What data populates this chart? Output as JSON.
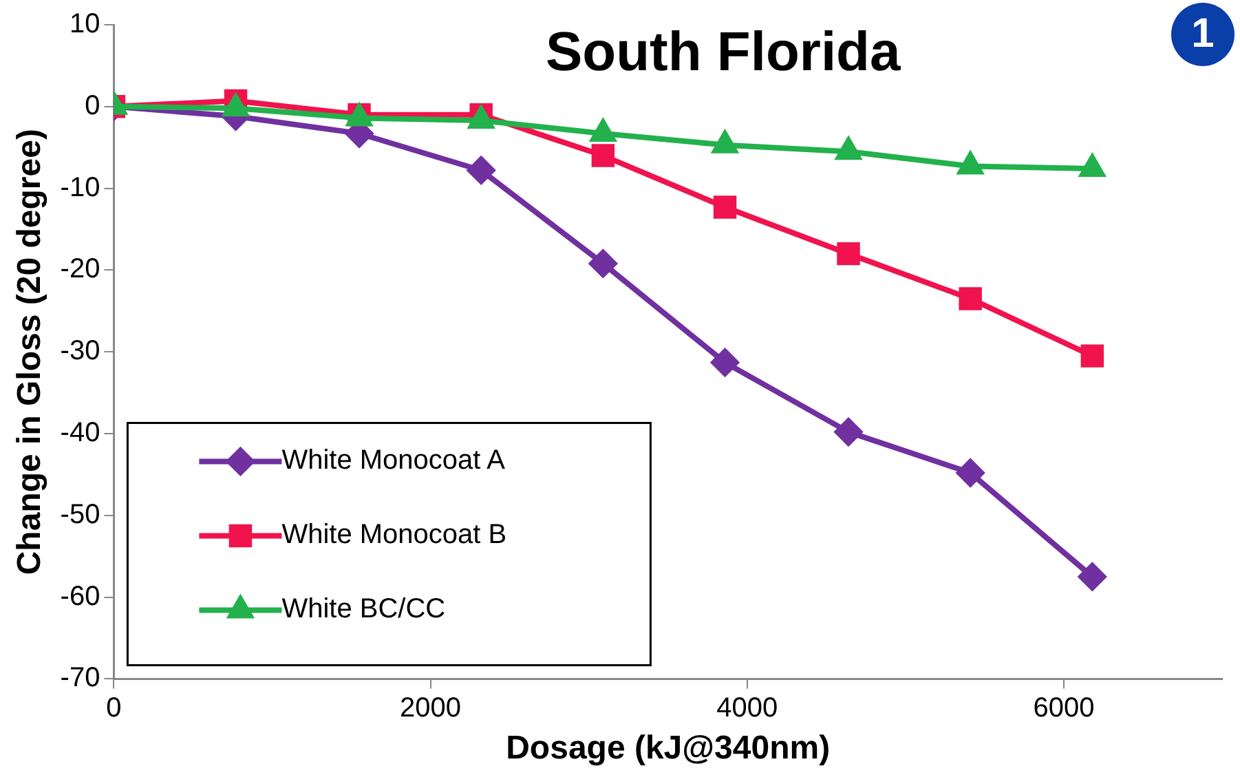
{
  "chart_data": {
    "type": "line",
    "title": "South Florida",
    "xlabel": "Dosage (kJ@340nm)",
    "ylabel": "Change in Gloss (20 degree)",
    "annotations": [
      "1"
    ],
    "x": [
      0,
      770,
      1550,
      2320,
      3090,
      3860,
      4640,
      5410,
      6180
    ],
    "series": [
      {
        "name": "White Monocoat A",
        "color": "#7030a0",
        "marker": "diamond",
        "values": [
          0,
          -1.2,
          -3.3,
          -7.8,
          -19.2,
          -31.3,
          -39.8,
          -44.8,
          -57.5
        ]
      },
      {
        "name": "White Monocoat B",
        "color": "#f0134d",
        "marker": "square",
        "values": [
          0,
          0.7,
          -1,
          -1,
          -6,
          -12.3,
          -18,
          -23.5,
          -30.5
        ]
      },
      {
        "name": "White BC/CC",
        "color": "#22b14c",
        "marker": "triangle",
        "values": [
          0,
          -0.2,
          -1.4,
          -1.7,
          -3.3,
          -4.7,
          -5.5,
          -7.3,
          -7.6
        ]
      }
    ],
    "xlim": [
      0,
      7000
    ],
    "xticks": [
      0,
      2000,
      4000,
      6000
    ],
    "ylim": [
      -70,
      10
    ],
    "yticks": [
      10,
      0,
      -10,
      -20,
      -30,
      -40,
      -50,
      -60,
      -70
    ],
    "grid": false,
    "legend": "bottom left",
    "line_style": "solid"
  }
}
